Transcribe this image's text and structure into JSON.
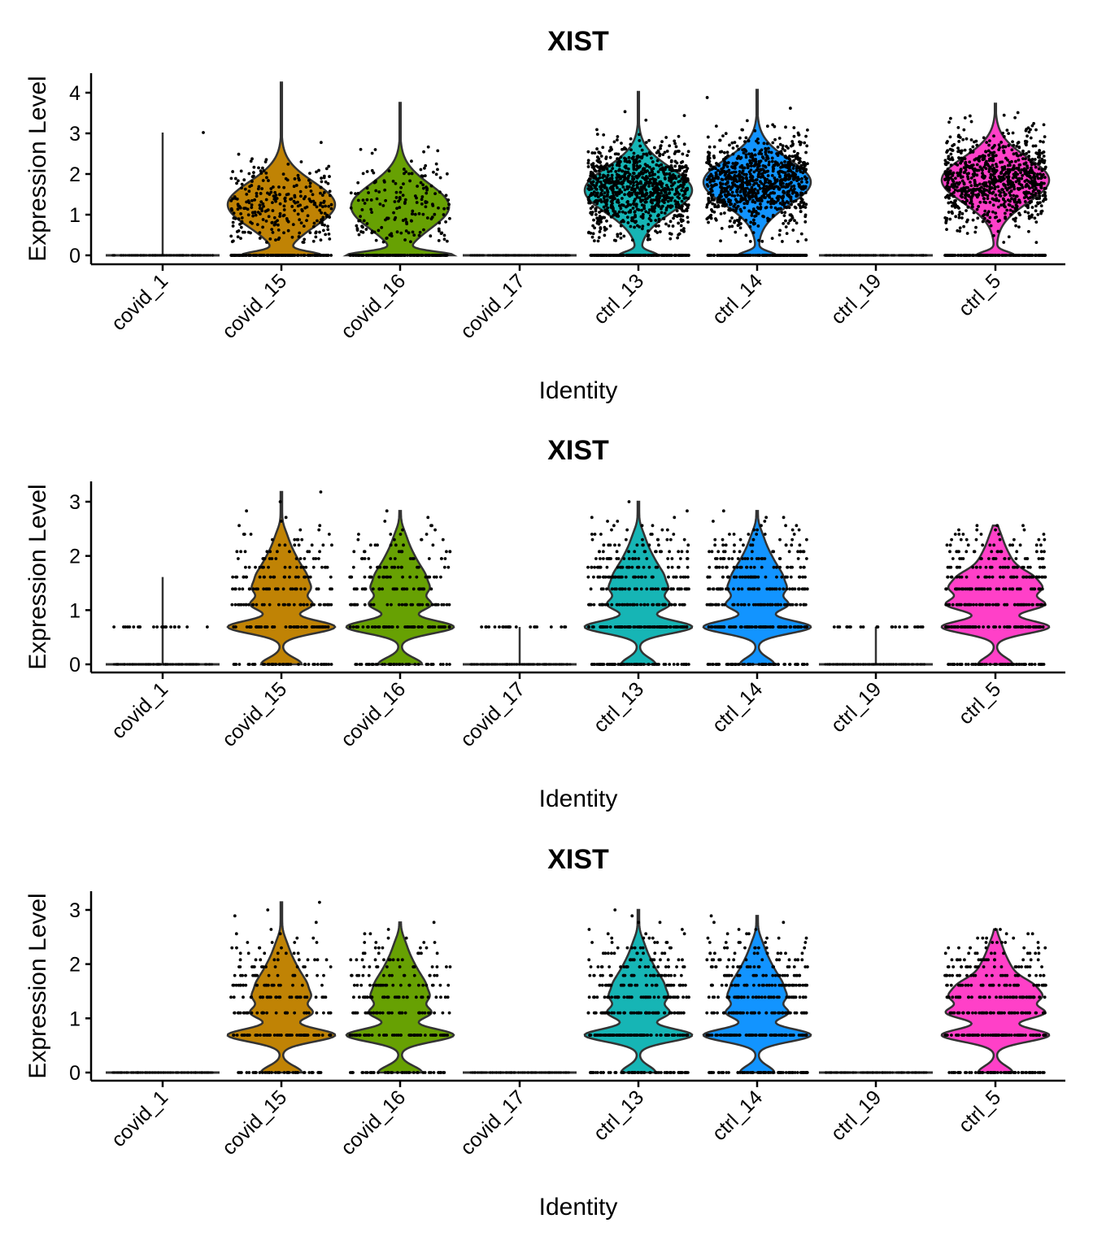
{
  "chart_data": [
    {
      "type": "violin",
      "title": "XIST",
      "xlabel": "Identity",
      "ylabel": "Expression Level",
      "ylim": [
        -0.15,
        4.45
      ],
      "yticks": [
        0,
        1,
        2,
        3,
        4
      ],
      "categories": [
        "covid_1",
        "covid_15",
        "covid_16",
        "covid_17",
        "ctrl_13",
        "ctrl_14",
        "ctrl_19",
        "ctrl_5"
      ],
      "colors": [
        "#000000",
        "#C08305",
        "#67A103",
        "#16B5B5",
        "#16B5B5",
        "#1294FF",
        "#000000",
        "#FF40C8"
      ],
      "fill_colors": [
        "#F8766D",
        "#C08305",
        "#67A103",
        "#00C19A",
        "#16B5B5",
        "#1294FF",
        "#C77CFF",
        "#FF40C8"
      ],
      "distribution": "continuous",
      "series": [
        {
          "name": "covid_1",
          "max": 3.02,
          "nonzero_fraction": 0.01,
          "mode": 0,
          "n_points": 120
        },
        {
          "name": "covid_15",
          "max": 4.25,
          "nonzero_fraction": 0.7,
          "mode": 1.25,
          "n_points": 420
        },
        {
          "name": "covid_16",
          "max": 3.75,
          "nonzero_fraction": 0.55,
          "mode": 1.2,
          "n_points": 320
        },
        {
          "name": "covid_17",
          "max": 0.0,
          "nonzero_fraction": 0.0,
          "mode": 0,
          "n_points": 120
        },
        {
          "name": "ctrl_13",
          "max": 4.02,
          "nonzero_fraction": 0.85,
          "mode": 1.6,
          "n_points": 1100
        },
        {
          "name": "ctrl_14",
          "max": 4.07,
          "nonzero_fraction": 0.85,
          "mode": 1.8,
          "n_points": 1100
        },
        {
          "name": "ctrl_19",
          "max": 0.0,
          "nonzero_fraction": 0.0,
          "mode": 0,
          "n_points": 120
        },
        {
          "name": "ctrl_5",
          "max": 3.73,
          "nonzero_fraction": 0.85,
          "mode": 1.85,
          "n_points": 1000
        }
      ]
    },
    {
      "type": "violin",
      "title": "XIST",
      "xlabel": "Identity",
      "ylabel": "Expression Level",
      "ylim": [
        -0.13,
        3.35
      ],
      "yticks": [
        0,
        1,
        2,
        3
      ],
      "categories": [
        "covid_1",
        "covid_15",
        "covid_16",
        "covid_17",
        "ctrl_13",
        "ctrl_14",
        "ctrl_19",
        "ctrl_5"
      ],
      "distribution": "discrete",
      "levels": [
        0,
        0.69,
        1.1,
        1.39,
        1.61,
        1.79,
        1.95,
        2.08,
        2.2,
        2.3,
        2.4,
        2.48,
        2.56,
        2.64,
        2.71,
        2.83,
        3.0,
        3.18
      ],
      "series": [
        {
          "name": "covid_1",
          "max": 1.61,
          "nonzero_fraction": 0.06,
          "mode": 0
        },
        {
          "name": "covid_15",
          "max": 3.18,
          "nonzero_fraction": 0.8,
          "mode": 0.69
        },
        {
          "name": "covid_16",
          "max": 2.83,
          "nonzero_fraction": 0.75,
          "mode": 0.69
        },
        {
          "name": "covid_17",
          "max": 0.69,
          "nonzero_fraction": 0.02,
          "mode": 0
        },
        {
          "name": "ctrl_13",
          "max": 3.0,
          "nonzero_fraction": 0.9,
          "mode": 0.69
        },
        {
          "name": "ctrl_14",
          "max": 2.83,
          "nonzero_fraction": 0.9,
          "mode": 0.69
        },
        {
          "name": "ctrl_19",
          "max": 0.69,
          "nonzero_fraction": 0.02,
          "mode": 0
        },
        {
          "name": "ctrl_5",
          "max": 2.56,
          "nonzero_fraction": 0.9,
          "mode": 0.69
        }
      ]
    },
    {
      "type": "violin",
      "title": "XIST",
      "xlabel": "Identity",
      "ylabel": "Expression Level",
      "ylim": [
        -0.13,
        3.35
      ],
      "yticks": [
        0,
        1,
        2,
        3
      ],
      "categories": [
        "covid_1",
        "covid_15",
        "covid_16",
        "covid_17",
        "ctrl_13",
        "ctrl_14",
        "ctrl_19",
        "ctrl_5"
      ],
      "distribution": "discrete",
      "levels": [
        0,
        0.69,
        1.1,
        1.39,
        1.61,
        1.79,
        1.95,
        2.08,
        2.2,
        2.3,
        2.4,
        2.48,
        2.56,
        2.64,
        2.77,
        2.89,
        3.0,
        3.14
      ],
      "series": [
        {
          "name": "covid_1",
          "max": 0.0,
          "nonzero_fraction": 0.0,
          "mode": 0
        },
        {
          "name": "covid_15",
          "max": 3.14,
          "nonzero_fraction": 0.8,
          "mode": 0.69
        },
        {
          "name": "covid_16",
          "max": 2.77,
          "nonzero_fraction": 0.75,
          "mode": 0.69
        },
        {
          "name": "covid_17",
          "max": 0.0,
          "nonzero_fraction": 0.0,
          "mode": 0
        },
        {
          "name": "ctrl_13",
          "max": 3.0,
          "nonzero_fraction": 0.9,
          "mode": 0.69
        },
        {
          "name": "ctrl_14",
          "max": 2.89,
          "nonzero_fraction": 0.9,
          "mode": 0.69
        },
        {
          "name": "ctrl_19",
          "max": 0.0,
          "nonzero_fraction": 0.0,
          "mode": 0
        },
        {
          "name": "ctrl_5",
          "max": 2.64,
          "nonzero_fraction": 0.9,
          "mode": 0.69
        }
      ]
    }
  ],
  "palette": {
    "covid_1": "#F8766D",
    "covid_15": "#C08305",
    "covid_16": "#67A103",
    "covid_17": "#00C19A",
    "ctrl_13": "#16B5B5",
    "ctrl_14": "#1294FF",
    "ctrl_19": "#C77CFF",
    "ctrl_5": "#FF40C8",
    "outline": "#333333",
    "points": "#000000"
  }
}
